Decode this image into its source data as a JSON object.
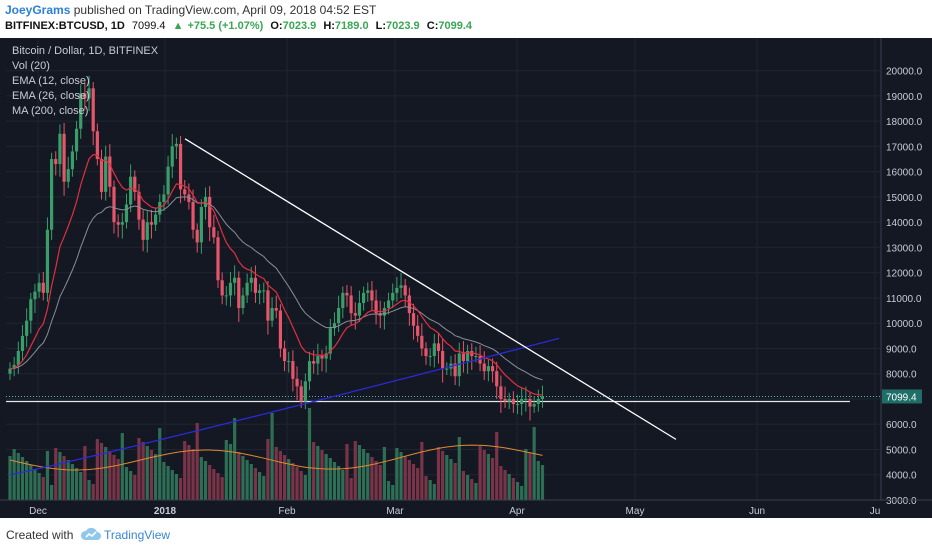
{
  "header": {
    "author": "JoeyGrams",
    "published_text": "published on TradingView.com, April 09, 2018 04:52 EST",
    "symbol": "BITFINEX:BTCUSD, 1D",
    "last": "7099.4",
    "change": "+75.5 (+1.07%)",
    "o_label": "O:",
    "o": "7023.9",
    "h_label": "H:",
    "h": "7189.0",
    "l_label": "L:",
    "l": "7023.9",
    "c_label": "C:",
    "c": "7099.4"
  },
  "legend": {
    "title": "Bitcoin / Dollar, 1D, BITFINEX",
    "vol": "Vol (20)",
    "ema12": "EMA (12, close)",
    "ema26": "EMA (26, close)",
    "ma200": "MA (200, close)"
  },
  "footer": {
    "created_with": "Created with",
    "brand": "TradingView"
  },
  "chart_data": {
    "type": "candlestick",
    "title": "Bitcoin / Dollar, 1D, BITFINEX",
    "x_tick_labels": [
      "Dec",
      "2018",
      "Feb",
      "Mar",
      "Apr",
      "May",
      "Jun",
      "Ju"
    ],
    "y_tick_labels": [
      "20000.0",
      "19000.0",
      "18000.0",
      "17000.0",
      "16000.0",
      "15000.0",
      "14000.0",
      "13000.0",
      "12000.0",
      "11000.0",
      "10000.0",
      "9000.0",
      "8000.0",
      "7000.0",
      "6000.0",
      "5000.0",
      "4000.0",
      "3000.0"
    ],
    "ylim": [
      3000,
      20500
    ],
    "last_price_label": "7099.4",
    "last_price": 7099.4,
    "support_level": 6900,
    "colors": {
      "up": "#3a9e6a",
      "down": "#e5566a",
      "ema12": "#e03040",
      "ema26": "#8a8e98",
      "ma200": "#2a2ad8",
      "trend": "#ffffff",
      "vol_avg": "#e08a30"
    },
    "closes": [
      8200,
      8350,
      8900,
      9500,
      10100,
      10950,
      11250,
      11600,
      11200,
      13700,
      16500,
      16300,
      17500,
      15600,
      16100,
      16800,
      17700,
      19100,
      18900,
      19300,
      17600,
      16500,
      15200,
      16600,
      15400,
      14000,
      13900,
      14000,
      14700,
      15800,
      15200,
      14100,
      13300,
      14000,
      13900,
      14300,
      14800,
      15100,
      16200,
      17000,
      17100,
      15300,
      15100,
      14800,
      13700,
      13200,
      14600,
      15000,
      13800,
      13400,
      11700,
      11100,
      11100,
      11600,
      11800,
      10600,
      11100,
      11600,
      11800,
      11200,
      11300,
      11300,
      10100,
      10600,
      10500,
      9000,
      8500,
      8500,
      7800,
      7500,
      6900,
      7700,
      8500,
      8400,
      8700,
      8600,
      8800,
      9800,
      10000,
      10600,
      11200,
      11100,
      10400,
      10300,
      10800,
      11200,
      11300,
      10900,
      10400,
      10300,
      10600,
      10900,
      11200,
      11400,
      11500,
      11100,
      10400,
      9900,
      9500,
      9000,
      8700,
      8700,
      9200,
      8900,
      8200,
      8200,
      8400,
      7900,
      8800,
      8500,
      8900,
      8700,
      8700,
      8400,
      8100,
      8300,
      8100,
      7500,
      7000,
      6900,
      7000,
      6800,
      6800,
      7000,
      7000,
      6700,
      6800,
      7000,
      7100
    ],
    "series": [
      {
        "name": "EMA (12, close)"
      },
      {
        "name": "EMA (26, close)"
      },
      {
        "name": "MA (200, close)"
      },
      {
        "name": "Vol (20)"
      }
    ],
    "trendline": {
      "from_price": 17300,
      "to_price": 5400
    }
  }
}
